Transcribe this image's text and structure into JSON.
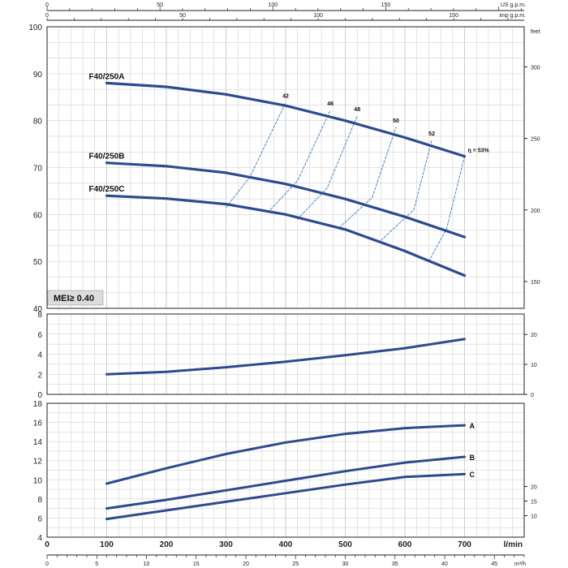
{
  "chart_data": {
    "type": "line",
    "x_axis_bottom": {
      "unit": "l/min",
      "ticks": [
        0,
        100,
        200,
        300,
        400,
        500,
        600,
        700
      ],
      "range": [
        0,
        800
      ]
    },
    "x_axis_m3h": {
      "unit": "m³/h",
      "ticks": [
        0,
        5,
        10,
        15,
        20,
        25,
        30,
        35,
        40,
        45
      ],
      "range": [
        0,
        48
      ]
    },
    "x_axis_us": {
      "unit": "US g.p.m.",
      "ticks": [
        0,
        50,
        100,
        150
      ],
      "range": [
        0,
        211.3
      ]
    },
    "x_axis_imp": {
      "unit": "imp g.p.m.",
      "ticks": [
        0,
        50,
        100,
        150
      ],
      "range": [
        0,
        176
      ]
    },
    "head_panel": {
      "ylim": [
        40,
        100
      ],
      "yticks_left": [
        40,
        50,
        60,
        70,
        80,
        90,
        100
      ],
      "right_unit": "feet",
      "yticks_right": [
        150,
        200,
        250,
        300
      ],
      "badge": "MEI≥ 0.40",
      "efficiency_prefix": "η =",
      "series": [
        {
          "name": "F40/250A",
          "x": [
            100,
            200,
            300,
            400,
            500,
            600,
            700
          ],
          "y": [
            88,
            87.2,
            85.6,
            83.2,
            80.0,
            76.4,
            72.4
          ]
        },
        {
          "name": "F40/250B",
          "x": [
            100,
            200,
            300,
            400,
            500,
            600,
            700
          ],
          "y": [
            71,
            70.3,
            68.9,
            66.5,
            63.3,
            59.5,
            55.2
          ]
        },
        {
          "name": "F40/250C",
          "x": [
            100,
            200,
            300,
            400,
            500,
            600,
            700
          ],
          "y": [
            64,
            63.4,
            62.2,
            60.0,
            56.8,
            52.2,
            47.0
          ]
        }
      ],
      "efficiency": [
        {
          "label": "42",
          "points": [
            [
              300,
              61.5
            ],
            [
              340,
              68
            ],
            [
              400,
              83.8
            ]
          ]
        },
        {
          "label": "46",
          "points": [
            [
              370,
              60.4
            ],
            [
              420,
              67.2
            ],
            [
              475,
              82.2
            ]
          ]
        },
        {
          "label": "48",
          "points": [
            [
              420,
              59.0
            ],
            [
              470,
              65.7
            ],
            [
              520,
              81.0
            ]
          ]
        },
        {
          "label": "50",
          "points": [
            [
              490,
              57.2
            ],
            [
              545,
              63.6
            ],
            [
              585,
              78.6
            ]
          ]
        },
        {
          "label": "52",
          "points": [
            [
              560,
              54.5
            ],
            [
              615,
              61.0
            ],
            [
              645,
              75.8
            ]
          ]
        },
        {
          "label": "53%",
          "points": [
            [
              640,
              50.0
            ],
            [
              670,
              57.0
            ],
            [
              700,
              72.4
            ]
          ]
        }
      ]
    },
    "power_panel": {
      "ylim": [
        0,
        8
      ],
      "yticks_left": [
        0,
        2,
        4,
        6,
        8
      ],
      "yticks_right": [
        0,
        10,
        20
      ],
      "series": [
        {
          "name": "",
          "x": [
            100,
            200,
            300,
            400,
            500,
            600,
            700
          ],
          "y": [
            2.0,
            2.25,
            2.7,
            3.25,
            3.9,
            4.6,
            5.5
          ]
        }
      ]
    },
    "npsh_panel": {
      "ylim": [
        4,
        18
      ],
      "yticks_left": [
        4,
        6,
        8,
        10,
        12,
        14,
        16,
        18
      ],
      "yticks_right": [
        10,
        15,
        20
      ],
      "series": [
        {
          "name": "A",
          "x": [
            100,
            200,
            300,
            400,
            500,
            600,
            700
          ],
          "y": [
            9.6,
            11.2,
            12.7,
            13.9,
            14.8,
            15.4,
            15.7
          ]
        },
        {
          "name": "B",
          "x": [
            100,
            200,
            300,
            400,
            500,
            600,
            700
          ],
          "y": [
            7.0,
            7.9,
            8.9,
            9.9,
            10.9,
            11.8,
            12.4
          ]
        },
        {
          "name": "C",
          "x": [
            100,
            200,
            300,
            400,
            500,
            600,
            700
          ],
          "y": [
            5.9,
            6.8,
            7.7,
            8.6,
            9.5,
            10.3,
            10.6
          ]
        }
      ]
    },
    "colors": {
      "curve": "#2e4a8e",
      "efficiency": "#4a86d4",
      "grid": "#c9c9c9",
      "frame": "#222222",
      "badge": "#dcdcdc"
    }
  }
}
